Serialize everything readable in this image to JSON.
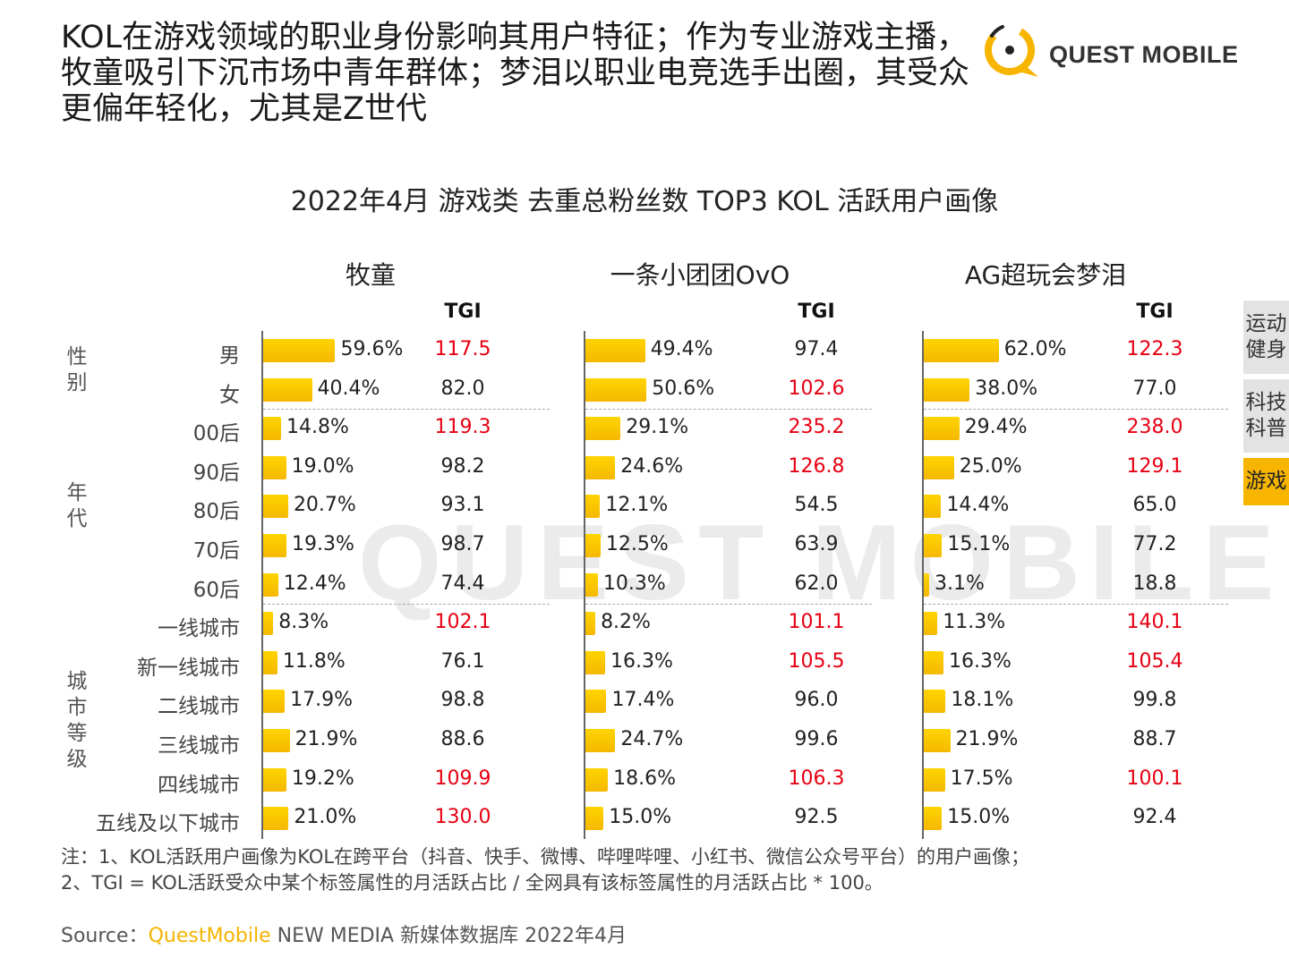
{
  "headline": "KOL在游戏领域的职业身份影响其用户特征；作为专业游戏主播，牧童吸引下沉市场中青年群体；梦泪以职业电竞选手出圈，其受众更偏年轻化，尤其是Z世代",
  "logo": {
    "text": "QUEST MOBILE",
    "accent_color": "#f7b500"
  },
  "watermark": "QUEST MOBILE",
  "side_tabs": [
    {
      "label": "运动健身",
      "active": false
    },
    {
      "label": "科技科普",
      "active": false
    },
    {
      "label": "游戏",
      "active": true
    }
  ],
  "notes": [
    "注：1、KOL活跃用户画像为KOL在跨平台（抖音、快手、微博、哔哩哔哩、小红书、微信公众号平台）的用户画像；",
    "2、TGI = KOL活跃受众中某个标签属性的月活跃占比 / 全网具有该标签属性的月活跃占比 * 100。"
  ],
  "source": {
    "prefix": "Source：",
    "brand": "QuestMobile",
    "rest": " NEW MEDIA 新媒体数据库 2022年4月"
  },
  "colors": {
    "bar": "#f7b500",
    "tgi_high": "#e60012"
  },
  "chart_data": {
    "type": "bar",
    "title": "2022年4月 游戏类 去重总粉丝数 TOP3 KOL 活跃用户画像",
    "tgi_label": "TGI",
    "groups": [
      {
        "label": "性别",
        "rows": [
          "男",
          "女"
        ]
      },
      {
        "label": "年代",
        "rows": [
          "00后",
          "90后",
          "80后",
          "70后",
          "60后"
        ]
      },
      {
        "label": "城市等级",
        "rows": [
          "一线城市",
          "新一线城市",
          "二线城市",
          "三线城市",
          "四线城市",
          "五线及以下城市"
        ]
      }
    ],
    "categories": [
      "男",
      "女",
      "00后",
      "90后",
      "80后",
      "70后",
      "60后",
      "一线城市",
      "新一线城市",
      "二线城市",
      "三线城市",
      "四线城市",
      "五线及以下城市"
    ],
    "series": [
      {
        "name": "牧童",
        "values": [
          59.6,
          40.4,
          14.8,
          19.0,
          20.7,
          19.3,
          12.4,
          8.3,
          11.8,
          17.9,
          21.9,
          19.2,
          21.0
        ],
        "tgi": [
          "117.5",
          "82.0",
          "119.3",
          "98.2",
          "93.1",
          "98.7",
          "74.4",
          "102.1",
          "76.1",
          "98.8",
          "88.6",
          "109.9",
          "130.0"
        ]
      },
      {
        "name": "一条小团团OvO",
        "values": [
          49.4,
          50.6,
          29.1,
          24.6,
          12.1,
          12.5,
          10.3,
          8.2,
          16.3,
          17.4,
          24.7,
          18.6,
          15.0
        ],
        "tgi": [
          "97.4",
          "102.6",
          "235.2",
          "126.8",
          "54.5",
          "63.9",
          "62.0",
          "101.1",
          "105.5",
          "96.0",
          "99.6",
          "106.3",
          "92.5"
        ]
      },
      {
        "name": "AG超玩会梦泪",
        "values": [
          62.0,
          38.0,
          29.4,
          25.0,
          14.4,
          15.1,
          3.1,
          11.3,
          16.3,
          18.1,
          21.9,
          17.5,
          15.0
        ],
        "tgi": [
          "122.3",
          "77.0",
          "238.0",
          "129.1",
          "65.0",
          "77.2",
          "18.8",
          "140.1",
          "105.4",
          "99.8",
          "88.7",
          "100.1",
          "92.4"
        ]
      }
    ],
    "tgi_highlight_threshold": 100
  }
}
